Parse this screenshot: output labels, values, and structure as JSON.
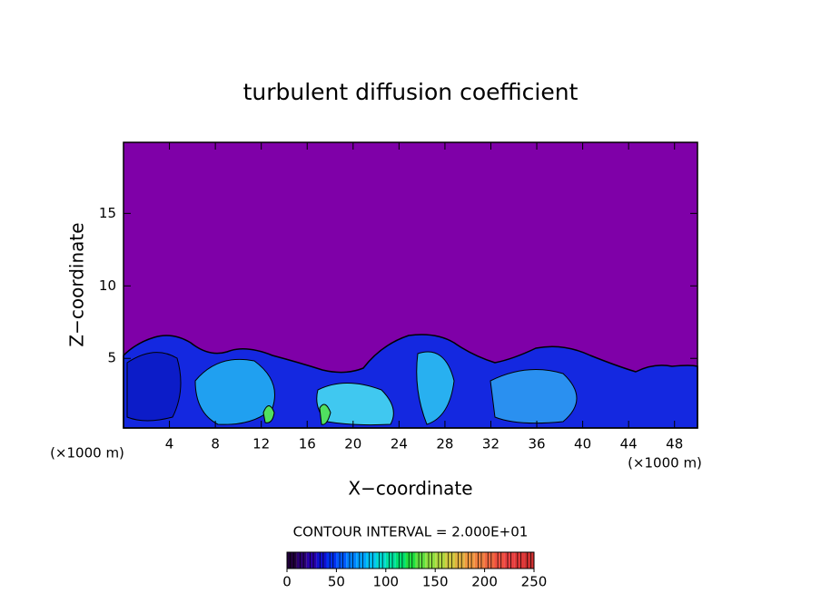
{
  "chart_data": {
    "type": "contour",
    "title": "turbulent diffusion coefficient",
    "xlabel": "X−coordinate",
    "ylabel": "Z−coordinate",
    "x_unit_labels": [
      "(×1000 m)",
      "(×1000 m)"
    ],
    "xlim": [
      0,
      50
    ],
    "xticks": [
      4,
      8,
      12,
      16,
      20,
      24,
      28,
      32,
      36,
      40,
      44,
      48
    ],
    "ylim": [
      0.2,
      19.9
    ],
    "yticks": [
      5,
      10,
      15
    ],
    "background_color": "#7f00a8",
    "contour_interval_label": "CONTOUR INTERVAL = 2.000E+01",
    "colorbar": {
      "lim": [
        0,
        250
      ],
      "ticks": [
        0,
        50,
        100,
        150,
        200,
        250
      ],
      "colors": [
        "#20003a",
        "#2a0070",
        "#2800a8",
        "#1010d0",
        "#0030f0",
        "#0058ff",
        "#0080ff",
        "#00a0ff",
        "#00c0f0",
        "#00d8d0",
        "#00e0a0",
        "#00e070",
        "#20e040",
        "#60e040",
        "#90e040",
        "#b0d840",
        "#d0c840",
        "#e0b040",
        "#f09840",
        "#f08040",
        "#f06840",
        "#f05040",
        "#e84040",
        "#e03838",
        "#d03030"
      ]
    }
  }
}
